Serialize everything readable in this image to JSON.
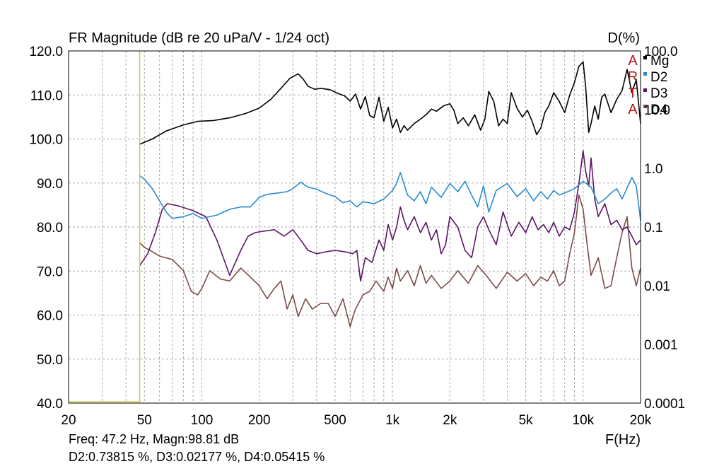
{
  "window": {
    "title": "FR Magnitude (dB re 20 uPa/V - 1/24 oct)",
    "right_axis_title": "D(%)",
    "x_axis_title": "F(Hz)",
    "watermark": [
      "A",
      "R",
      "T",
      "A"
    ]
  },
  "readout": {
    "line1": "Freq: 47.2 Hz, Magn:98.81 dB",
    "line2": "D2:0.73815 %, D3:0.02177 %, D4:0.05415 %"
  },
  "colors": {
    "Mg": "#000000",
    "D2": "#2a8ad0",
    "D3": "#5c1466",
    "D4": "#7a4c46",
    "cursor": "#cccc33",
    "grid": "#a8a8a8",
    "watermark": "#b01818"
  },
  "chart_data": {
    "type": "line",
    "title": "FR Magnitude (dB re 20 uPa/V - 1/24 oct)",
    "xlabel": "F(Hz)",
    "ylabel": "",
    "y2label": "D(%)",
    "xscale": "log",
    "xlim": [
      20,
      20000
    ],
    "ylim": [
      40,
      120
    ],
    "y2scale": "log",
    "y2lim": [
      0.0001,
      100
    ],
    "grid": true,
    "legend_position": "top-right",
    "x_ticks": [
      {
        "value": 20,
        "label": "20"
      },
      {
        "value": 50,
        "label": "50"
      },
      {
        "value": 100,
        "label": "100"
      },
      {
        "value": 200,
        "label": "200"
      },
      {
        "value": 500,
        "label": "500"
      },
      {
        "value": 1000,
        "label": "1k"
      },
      {
        "value": 2000,
        "label": "2k"
      },
      {
        "value": 5000,
        "label": "5k"
      },
      {
        "value": 10000,
        "label": "10k"
      },
      {
        "value": 20000,
        "label": "20k"
      }
    ],
    "y_ticks": [
      {
        "value": 120,
        "label": "120.0"
      },
      {
        "value": 110,
        "label": "110.0"
      },
      {
        "value": 100,
        "label": "100.0"
      },
      {
        "value": 90,
        "label": "90.0"
      },
      {
        "value": 80,
        "label": "80.0"
      },
      {
        "value": 70,
        "label": "70.0"
      },
      {
        "value": 60,
        "label": "60.0"
      },
      {
        "value": 50,
        "label": "50.0"
      },
      {
        "value": 40,
        "label": "40.0"
      }
    ],
    "y2_ticks": [
      {
        "value": 100,
        "label": "100.0"
      },
      {
        "value": 10,
        "label": "10.0"
      },
      {
        "value": 1,
        "label": "1.0"
      },
      {
        "value": 0.1,
        "label": "0.1"
      },
      {
        "value": 0.01,
        "label": "0.01"
      },
      {
        "value": 0.001,
        "label": "0.001"
      },
      {
        "value": 0.0001,
        "label": "0.0001"
      }
    ],
    "cursor": {
      "freq": 47.2,
      "magnitude_db": 98.81,
      "baseline_db": 40.3
    },
    "series": [
      {
        "name": "Mg",
        "axis": "left",
        "x": [
          47.2,
          55,
          65,
          80,
          95,
          115,
          140,
          170,
          200,
          230,
          260,
          290,
          320,
          340,
          360,
          390,
          420,
          470,
          520,
          560,
          600,
          640,
          680,
          720,
          760,
          800,
          850,
          900,
          950,
          1000,
          1050,
          1100,
          1150,
          1200,
          1300,
          1400,
          1500,
          1600,
          1700,
          1850,
          2000,
          2100,
          2200,
          2350,
          2500,
          2700,
          2900,
          3050,
          3200,
          3400,
          3600,
          3800,
          4000,
          4200,
          4500,
          4800,
          5100,
          5400,
          5700,
          6000,
          6300,
          6600,
          7000,
          7500,
          8000,
          8500,
          9000,
          9500,
          10000,
          10300,
          10700,
          11000,
          11500,
          12000,
          12500,
          13000,
          14000,
          15000,
          16000,
          17000,
          18000,
          19000,
          20000
        ],
        "y": [
          98.8,
          100.0,
          101.8,
          103.2,
          104.0,
          104.2,
          104.8,
          105.8,
          107.0,
          109.0,
          111.5,
          113.8,
          114.8,
          113.6,
          112.0,
          111.3,
          111.5,
          111.2,
          110.3,
          109.8,
          108.6,
          110.2,
          106.8,
          109.6,
          105.3,
          104.8,
          109.5,
          104.0,
          107.2,
          102.5,
          104.5,
          101.5,
          103.0,
          102.0,
          103.5,
          104.5,
          105.5,
          106.8,
          106.3,
          107.5,
          108.0,
          106.5,
          103.5,
          104.8,
          103.0,
          105.5,
          102.0,
          104.5,
          110.8,
          108.5,
          103.0,
          104.5,
          103.5,
          110.5,
          107.0,
          105.0,
          106.5,
          104.0,
          101.0,
          102.5,
          106.0,
          107.5,
          110.5,
          108.5,
          106.0,
          110.0,
          112.8,
          116.5,
          117.5,
          112.0,
          101.5,
          103.5,
          107.5,
          104.5,
          109.5,
          110.2,
          106.0,
          109.0,
          111.0,
          115.8,
          110.5,
          113.5,
          103.5
        ]
      },
      {
        "name": "D2",
        "axis": "right",
        "x": [
          47.2,
          50,
          55,
          60,
          65,
          70,
          80,
          90,
          100,
          120,
          140,
          160,
          180,
          200,
          220,
          250,
          280,
          300,
          330,
          360,
          400,
          450,
          500,
          550,
          600,
          650,
          700,
          800,
          900,
          1000,
          1050,
          1100,
          1200,
          1300,
          1400,
          1500,
          1600,
          1800,
          2000,
          2200,
          2400,
          2600,
          2800,
          3000,
          3200,
          3500,
          4000,
          4500,
          5000,
          5500,
          6000,
          6500,
          7000,
          7500,
          8000,
          9000,
          10000,
          11000,
          12000,
          13000,
          14000,
          15000,
          16000,
          18000,
          19000,
          20000
        ],
        "y": [
          0.75,
          0.65,
          0.45,
          0.28,
          0.18,
          0.14,
          0.15,
          0.17,
          0.14,
          0.16,
          0.2,
          0.22,
          0.22,
          0.32,
          0.36,
          0.38,
          0.4,
          0.45,
          0.58,
          0.48,
          0.44,
          0.37,
          0.33,
          0.26,
          0.28,
          0.22,
          0.27,
          0.25,
          0.3,
          0.42,
          0.55,
          0.85,
          0.35,
          0.28,
          0.4,
          0.25,
          0.48,
          0.32,
          0.55,
          0.4,
          0.6,
          0.35,
          0.22,
          0.5,
          0.18,
          0.42,
          0.55,
          0.33,
          0.45,
          0.28,
          0.4,
          0.3,
          0.42,
          0.35,
          0.38,
          0.45,
          0.6,
          0.48,
          0.25,
          0.3,
          0.38,
          0.45,
          0.3,
          0.7,
          0.5,
          0.13
        ]
      },
      {
        "name": "D3",
        "axis": "right",
        "x": [
          47.2,
          52,
          57,
          62,
          66,
          75,
          90,
          105,
          120,
          140,
          160,
          175,
          190,
          210,
          240,
          270,
          300,
          330,
          360,
          400,
          450,
          500,
          560,
          620,
          650,
          680,
          720,
          780,
          850,
          900,
          950,
          1000,
          1050,
          1100,
          1150,
          1200,
          1300,
          1400,
          1500,
          1600,
          1700,
          1800,
          1900,
          2000,
          2200,
          2400,
          2600,
          2800,
          3000,
          3200,
          3500,
          3800,
          4200,
          4600,
          5000,
          5400,
          5800,
          6200,
          6600,
          7000,
          7500,
          8000,
          8500,
          9000,
          9500,
          10000,
          10300,
          10700,
          11000,
          11500,
          12000,
          13000,
          14000,
          15000,
          16000,
          17000,
          18000,
          19000,
          20000
        ],
        "y": [
          0.022,
          0.035,
          0.08,
          0.2,
          0.25,
          0.23,
          0.19,
          0.15,
          0.06,
          0.015,
          0.04,
          0.07,
          0.08,
          0.085,
          0.09,
          0.07,
          0.09,
          0.06,
          0.04,
          0.035,
          0.038,
          0.04,
          0.038,
          0.035,
          0.04,
          0.012,
          0.03,
          0.025,
          0.06,
          0.04,
          0.11,
          0.06,
          0.1,
          0.22,
          0.13,
          0.09,
          0.15,
          0.08,
          0.12,
          0.06,
          0.09,
          0.035,
          0.05,
          0.15,
          0.1,
          0.04,
          0.03,
          0.1,
          0.15,
          0.09,
          0.05,
          0.18,
          0.07,
          0.12,
          0.08,
          0.15,
          0.09,
          0.11,
          0.08,
          0.12,
          0.07,
          0.1,
          0.09,
          0.18,
          0.55,
          2.0,
          0.9,
          0.5,
          1.5,
          0.3,
          0.15,
          0.25,
          0.11,
          0.13,
          0.09,
          0.1,
          0.07,
          0.05,
          0.06
        ]
      },
      {
        "name": "D4",
        "axis": "right",
        "x": [
          47.2,
          50,
          55,
          60,
          70,
          80,
          88,
          95,
          100,
          110,
          125,
          140,
          160,
          180,
          200,
          220,
          240,
          260,
          280,
          300,
          320,
          350,
          380,
          420,
          460,
          500,
          550,
          600,
          620,
          640,
          700,
          760,
          820,
          900,
          950,
          1000,
          1050,
          1100,
          1200,
          1300,
          1400,
          1500,
          1600,
          1800,
          2000,
          2200,
          2500,
          2800,
          3100,
          3500,
          4000,
          4500,
          5000,
          5500,
          6000,
          6500,
          7000,
          7500,
          8000,
          8500,
          9000,
          9500,
          10000,
          10500,
          11000,
          12000,
          13000,
          14000,
          15000,
          16000,
          17000,
          18000,
          19000,
          20000
        ],
        "y": [
          0.054,
          0.045,
          0.038,
          0.032,
          0.028,
          0.018,
          0.008,
          0.007,
          0.009,
          0.018,
          0.013,
          0.012,
          0.02,
          0.014,
          0.01,
          0.006,
          0.009,
          0.012,
          0.004,
          0.007,
          0.003,
          0.006,
          0.004,
          0.005,
          0.005,
          0.003,
          0.006,
          0.002,
          0.003,
          0.004,
          0.007,
          0.008,
          0.012,
          0.008,
          0.014,
          0.009,
          0.02,
          0.012,
          0.018,
          0.01,
          0.022,
          0.011,
          0.015,
          0.009,
          0.012,
          0.018,
          0.011,
          0.022,
          0.015,
          0.009,
          0.017,
          0.012,
          0.016,
          0.01,
          0.014,
          0.012,
          0.018,
          0.01,
          0.012,
          0.035,
          0.08,
          0.35,
          0.2,
          0.05,
          0.015,
          0.03,
          0.009,
          0.01,
          0.03,
          0.08,
          0.15,
          0.02,
          0.01,
          0.02
        ]
      }
    ]
  }
}
